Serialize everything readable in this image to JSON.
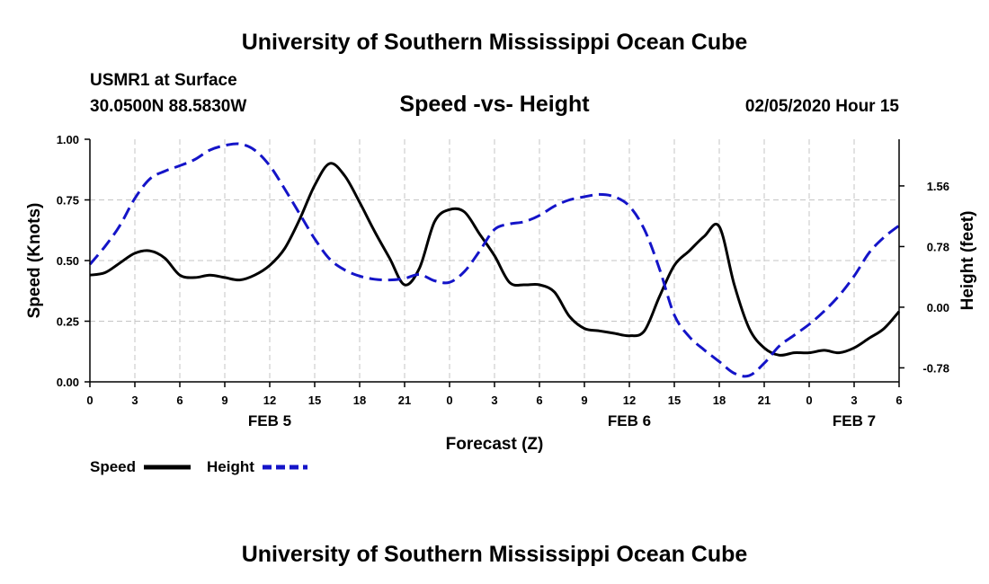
{
  "header": {
    "org_title": "University of Southern Mississippi Ocean Cube",
    "station": "USMR1 at Surface",
    "location": "30.0500N 88.5830W",
    "datetime": "02/05/2020 Hour 15"
  },
  "footer": {
    "org_title": "University of Southern Mississippi Ocean Cube"
  },
  "chart_data": {
    "type": "line",
    "title": "Speed -vs- Height",
    "xlabel": "Forecast (Z)",
    "ylabel": "Speed (Knots)",
    "ylabel_right": "Height (feet)",
    "grid": true,
    "legend_position": "bottom-left",
    "x_range": [
      0,
      54
    ],
    "ylim": [
      0,
      1.0
    ],
    "ylim_right": [
      -0.96,
      2.16
    ],
    "x_ticks": [
      0,
      3,
      6,
      9,
      12,
      15,
      18,
      21,
      24,
      27,
      30,
      33,
      36,
      39,
      42,
      45,
      48,
      51,
      54
    ],
    "x_tick_labels": [
      "0",
      "3",
      "6",
      "9",
      "12",
      "15",
      "18",
      "21",
      "0",
      "3",
      "6",
      "9",
      "12",
      "15",
      "18",
      "21",
      "0",
      "3",
      "6"
    ],
    "y_ticks": [
      0.0,
      0.25,
      0.5,
      0.75,
      1.0
    ],
    "y_tick_labels": [
      "0.00",
      "0.25",
      "0.50",
      "0.75",
      "1.00"
    ],
    "y_ticks_right": [
      -0.78,
      0.0,
      0.78,
      1.56
    ],
    "y_tick_labels_right": [
      "-0.78",
      "0.00",
      "0.78",
      "1.56"
    ],
    "day_labels": [
      {
        "label": "FEB 5",
        "x": 12
      },
      {
        "label": "FEB 6",
        "x": 36
      },
      {
        "label": "FEB 7",
        "x": 51
      }
    ],
    "series": [
      {
        "name": "Speed",
        "axis": "left",
        "color": "#000000",
        "dash": "solid",
        "x": [
          0,
          1,
          2,
          3,
          4,
          5,
          6,
          7,
          8,
          9,
          10,
          11,
          12,
          13,
          14,
          15,
          16,
          17,
          18,
          19,
          20,
          21,
          22,
          23,
          24,
          25,
          26,
          27,
          28,
          29,
          30,
          31,
          32,
          33,
          34,
          35,
          36,
          37,
          38,
          39,
          40,
          41,
          42,
          43,
          44,
          45,
          46,
          47,
          48,
          49,
          50,
          51,
          52,
          53,
          54
        ],
        "values": [
          0.44,
          0.45,
          0.49,
          0.53,
          0.54,
          0.51,
          0.44,
          0.43,
          0.44,
          0.43,
          0.42,
          0.44,
          0.48,
          0.55,
          0.67,
          0.81,
          0.9,
          0.85,
          0.74,
          0.62,
          0.51,
          0.4,
          0.47,
          0.66,
          0.71,
          0.7,
          0.61,
          0.52,
          0.41,
          0.4,
          0.4,
          0.37,
          0.27,
          0.22,
          0.21,
          0.2,
          0.19,
          0.21,
          0.35,
          0.48,
          0.54,
          0.6,
          0.64,
          0.4,
          0.22,
          0.14,
          0.11,
          0.12,
          0.12,
          0.13,
          0.12,
          0.14,
          0.18,
          0.22,
          0.29
        ]
      },
      {
        "name": "Height",
        "axis": "right",
        "color": "#1414c8",
        "dash": "dashed",
        "x": [
          0,
          1,
          2,
          3,
          4,
          5,
          6,
          7,
          8,
          9,
          10,
          11,
          12,
          13,
          14,
          15,
          16,
          17,
          18,
          19,
          20,
          21,
          22,
          23,
          24,
          25,
          26,
          27,
          28,
          29,
          30,
          31,
          32,
          33,
          34,
          35,
          36,
          37,
          38,
          39,
          40,
          41,
          42,
          43,
          44,
          45,
          46,
          47,
          48,
          49,
          50,
          51,
          52,
          53,
          54
        ],
        "values": [
          0.55,
          0.78,
          1.05,
          1.4,
          1.65,
          1.75,
          1.82,
          1.9,
          2.02,
          2.08,
          2.1,
          2.02,
          1.82,
          1.52,
          1.2,
          0.88,
          0.62,
          0.48,
          0.4,
          0.36,
          0.35,
          0.37,
          0.42,
          0.34,
          0.32,
          0.46,
          0.72,
          1.0,
          1.07,
          1.1,
          1.18,
          1.3,
          1.38,
          1.42,
          1.45,
          1.42,
          1.3,
          1.0,
          0.5,
          -0.1,
          -0.38,
          -0.55,
          -0.7,
          -0.85,
          -0.88,
          -0.72,
          -0.5,
          -0.36,
          -0.22,
          -0.05,
          0.15,
          0.4,
          0.7,
          0.9,
          1.05
        ]
      }
    ]
  }
}
